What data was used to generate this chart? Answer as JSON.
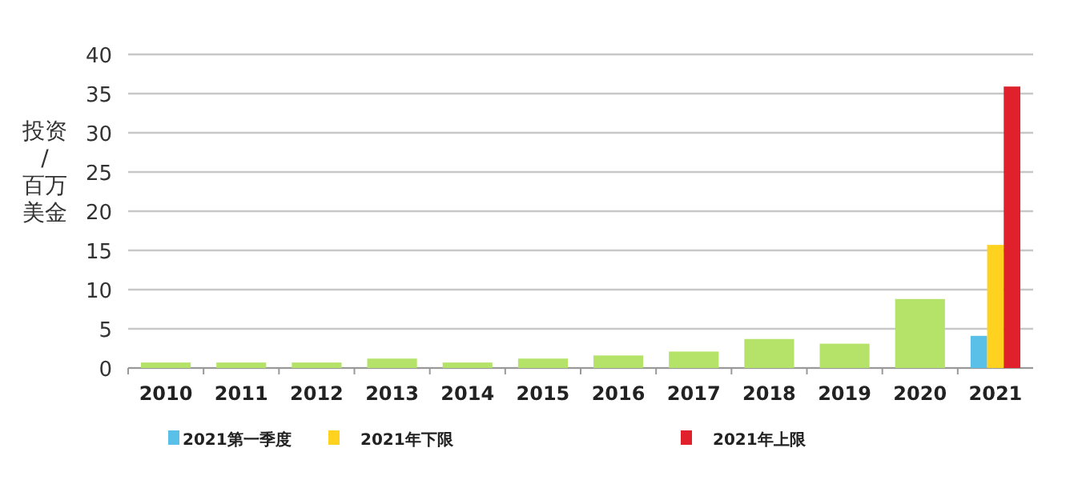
{
  "chart_data": {
    "type": "bar",
    "ylabel": "投资/百万美金",
    "categories": [
      "2010",
      "2011",
      "2012",
      "2013",
      "2014",
      "2015",
      "2016",
      "2017",
      "2018",
      "2019",
      "2020",
      "2021"
    ],
    "series": [
      {
        "color": "#b5e36a",
        "values": [
          0.7,
          0.7,
          0.7,
          1.2,
          0.7,
          1.2,
          1.6,
          2.1,
          3.7,
          3.1,
          8.8,
          null
        ]
      },
      {
        "name": "2021第一季度",
        "color": "#5bc0e8",
        "values": [
          null,
          null,
          null,
          null,
          null,
          null,
          null,
          null,
          null,
          null,
          null,
          4.1
        ]
      },
      {
        "name": "2021年下限",
        "color": "#ffd21f",
        "values": [
          null,
          null,
          null,
          null,
          null,
          null,
          null,
          null,
          null,
          null,
          null,
          15.7
        ]
      },
      {
        "name": "2021年上限",
        "color": "#e0202a",
        "values": [
          null,
          null,
          null,
          null,
          null,
          null,
          null,
          null,
          null,
          null,
          null,
          35.9
        ]
      }
    ],
    "ylim": [
      0,
      40
    ],
    "yticks": [
      0,
      5,
      10,
      15,
      20,
      25,
      30,
      35,
      40
    ],
    "grid": "y",
    "legend": "bottom"
  }
}
